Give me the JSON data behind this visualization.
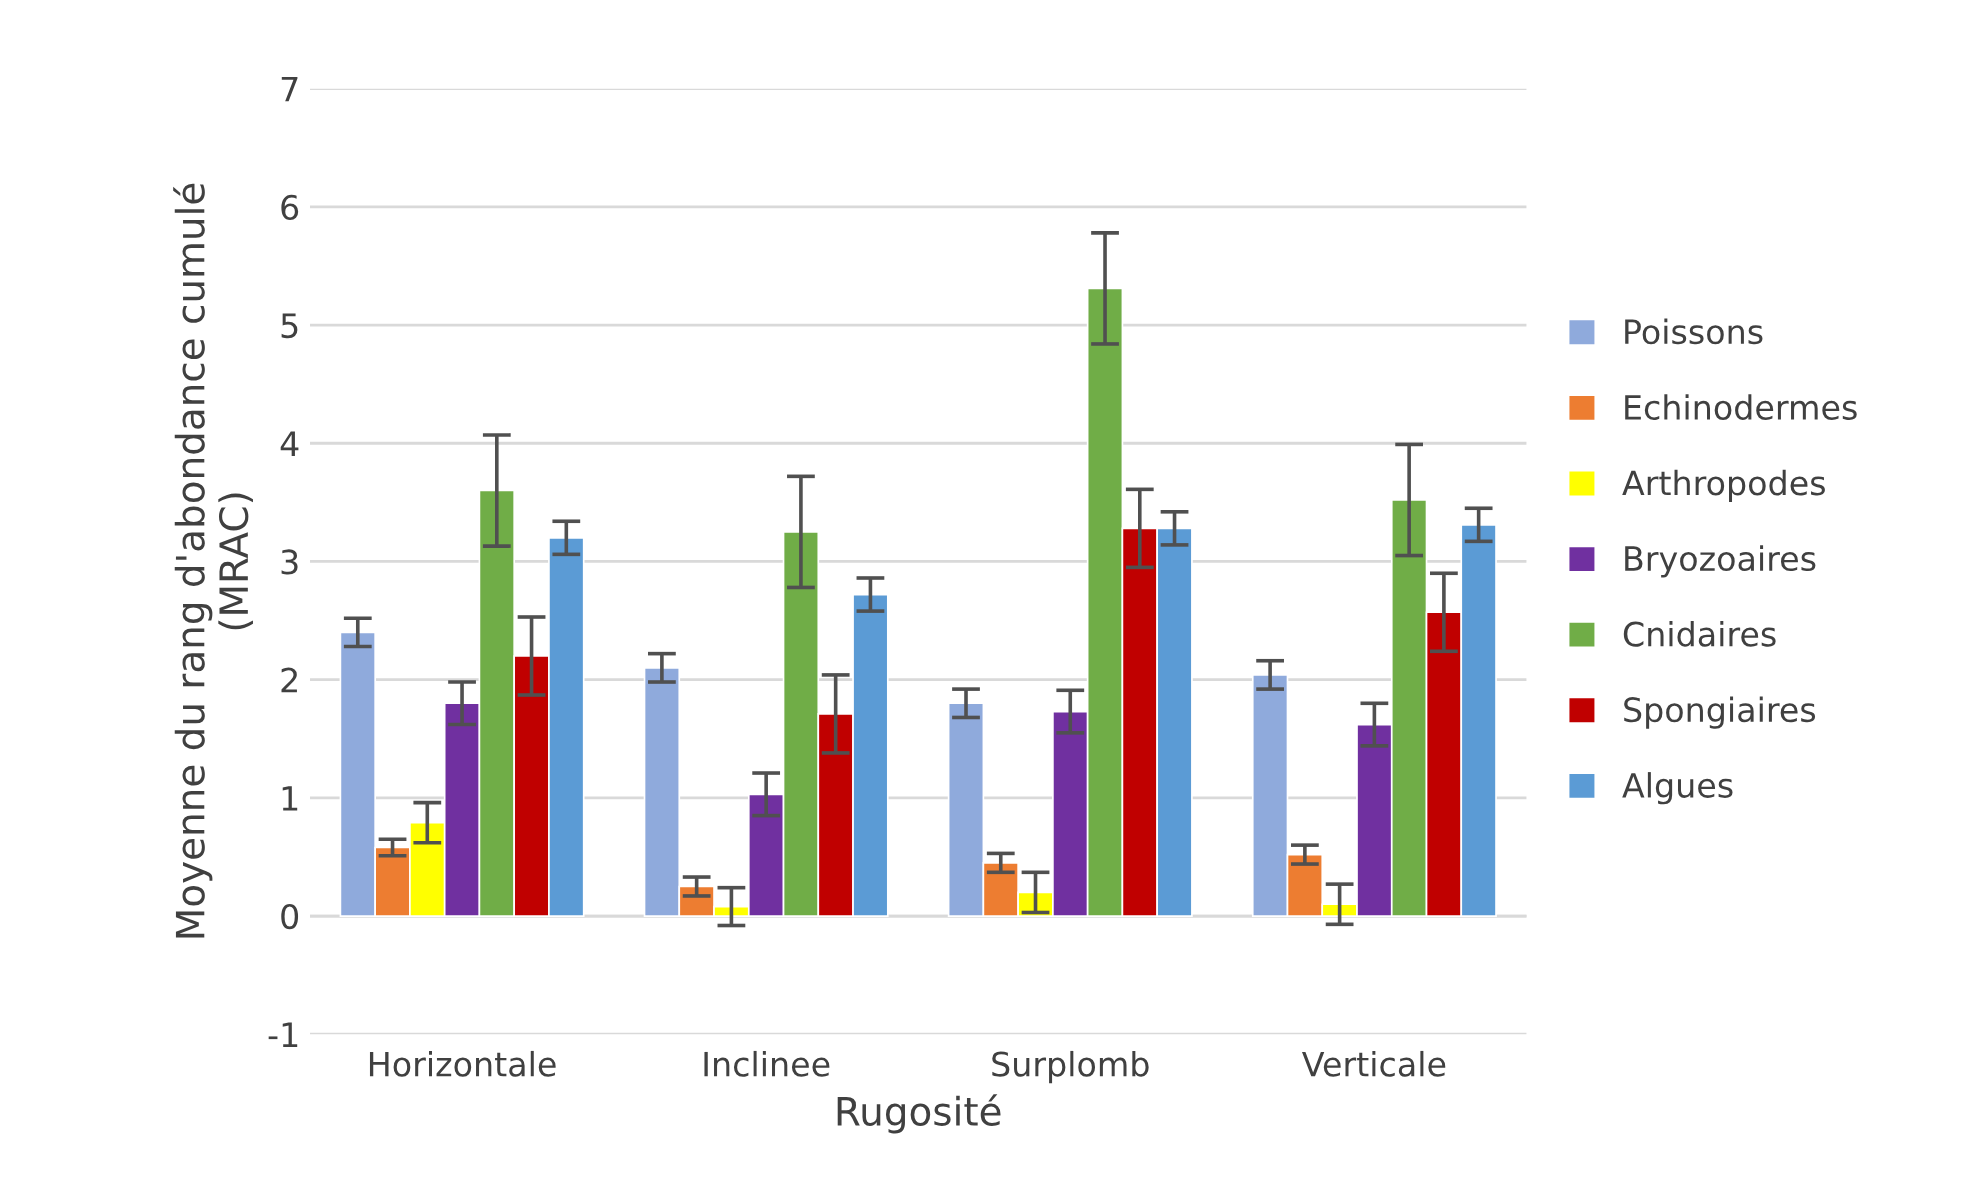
{
  "chart_data": {
    "type": "bar",
    "xlabel": "Rugosité",
    "ylabel": "Moyenne du rang d'abondance cumulé\n(MRAC)",
    "categories": [
      "Horizontale",
      "Inclinee",
      "Surplomb",
      "Verticale"
    ],
    "ylim": [
      -1,
      7
    ],
    "yticks": [
      -1,
      0,
      1,
      2,
      3,
      4,
      5,
      6,
      7
    ],
    "grid": "y",
    "legend": "right",
    "series": [
      {
        "name": "Poissons",
        "color": "#8faadc",
        "values": [
          2.4,
          2.1,
          1.8,
          2.04
        ],
        "errors": [
          0.12,
          0.12,
          0.12,
          0.12
        ]
      },
      {
        "name": "Echinodermes",
        "color": "#ed7d31",
        "values": [
          0.58,
          0.25,
          0.45,
          0.52
        ],
        "errors": [
          0.07,
          0.08,
          0.08,
          0.08
        ]
      },
      {
        "name": "Arthropodes",
        "color": "#ffff00",
        "values": [
          0.79,
          0.08,
          0.2,
          0.1
        ],
        "errors": [
          0.17,
          0.16,
          0.17,
          0.17
        ]
      },
      {
        "name": "Bryozoaires",
        "color": "#7030a0",
        "values": [
          1.8,
          1.03,
          1.73,
          1.62
        ],
        "errors": [
          0.18,
          0.18,
          0.18,
          0.18
        ]
      },
      {
        "name": "Cnidaires",
        "color": "#70ad47",
        "values": [
          3.6,
          3.25,
          5.31,
          3.52
        ],
        "errors": [
          0.47,
          0.47,
          0.47,
          0.47
        ]
      },
      {
        "name": "Spongiaires",
        "color": "#c00000",
        "values": [
          2.2,
          1.71,
          3.28,
          2.57
        ],
        "errors": [
          0.33,
          0.33,
          0.33,
          0.33
        ]
      },
      {
        "name": "Algues",
        "color": "#5b9bd5",
        "values": [
          3.2,
          2.72,
          3.28,
          3.31
        ],
        "errors": [
          0.14,
          0.14,
          0.14,
          0.14
        ]
      }
    ]
  }
}
